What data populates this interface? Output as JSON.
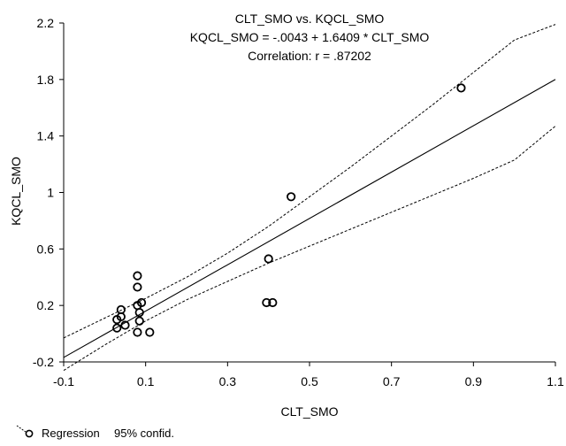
{
  "chart_data": {
    "type": "scatter",
    "title_lines": [
      "CLT_SMO vs. KQCL_SMO",
      "KQCL_SMO = -.0043 + 1.6409 * CLT_SMO",
      "Correlation: r = .87202"
    ],
    "xlabel": "CLT_SMO",
    "ylabel": "KQCL_SMO",
    "xlim": [
      -0.1,
      1.1
    ],
    "ylim": [
      -0.2,
      2.2
    ],
    "xticks": [
      -0.1,
      0.1,
      0.3,
      0.5,
      0.7,
      0.9,
      1.1
    ],
    "xtick_labels": [
      "-0.1",
      "0.1",
      "0.3",
      "0.5",
      "0.7",
      "0.9",
      "1.1"
    ],
    "yticks": [
      -0.2,
      0.2,
      0.6,
      1.0,
      1.4,
      1.8,
      2.2
    ],
    "ytick_labels": [
      "-0.2",
      "0.2",
      "0.6",
      "1",
      "1.4",
      "1.8",
      "2.2"
    ],
    "regression": {
      "intercept": -0.0043,
      "slope": 1.6409
    },
    "confidence_band": {
      "lower": [
        [
          -0.1,
          -0.26
        ],
        [
          0.0,
          -0.08
        ],
        [
          0.1,
          0.09
        ],
        [
          0.2,
          0.24
        ],
        [
          0.3,
          0.37
        ],
        [
          0.4,
          0.5
        ],
        [
          0.5,
          0.62
        ],
        [
          0.6,
          0.74
        ],
        [
          0.7,
          0.86
        ],
        [
          0.8,
          0.98
        ],
        [
          0.9,
          1.1
        ],
        [
          1.0,
          1.23
        ],
        [
          1.1,
          1.47
        ]
      ],
      "upper": [
        [
          -0.1,
          -0.03
        ],
        [
          0.0,
          0.11
        ],
        [
          0.1,
          0.25
        ],
        [
          0.2,
          0.4
        ],
        [
          0.3,
          0.57
        ],
        [
          0.4,
          0.76
        ],
        [
          0.5,
          0.97
        ],
        [
          0.6,
          1.18
        ],
        [
          0.7,
          1.4
        ],
        [
          0.8,
          1.62
        ],
        [
          0.9,
          1.85
        ],
        [
          1.0,
          2.08
        ],
        [
          1.1,
          2.19
        ]
      ]
    },
    "points": [
      [
        0.03,
        0.04
      ],
      [
        0.03,
        0.1
      ],
      [
        0.04,
        0.17
      ],
      [
        0.04,
        0.12
      ],
      [
        0.05,
        0.06
      ],
      [
        0.08,
        0.41
      ],
      [
        0.08,
        0.33
      ],
      [
        0.08,
        0.2
      ],
      [
        0.085,
        0.15
      ],
      [
        0.085,
        0.09
      ],
      [
        0.08,
        0.01
      ],
      [
        0.09,
        0.22
      ],
      [
        0.11,
        0.01
      ],
      [
        0.395,
        0.22
      ],
      [
        0.41,
        0.22
      ],
      [
        0.4,
        0.53
      ],
      [
        0.455,
        0.97
      ],
      [
        0.87,
        1.74
      ]
    ],
    "legend": {
      "placement": "bottom-left",
      "items": [
        {
          "symbol": "circle",
          "label": "Regression"
        },
        {
          "symbol": "dashed-line",
          "label": "95% confid."
        }
      ]
    },
    "colors": {
      "axis": "#000000",
      "points": "#000000",
      "background": "#ffffff"
    }
  }
}
